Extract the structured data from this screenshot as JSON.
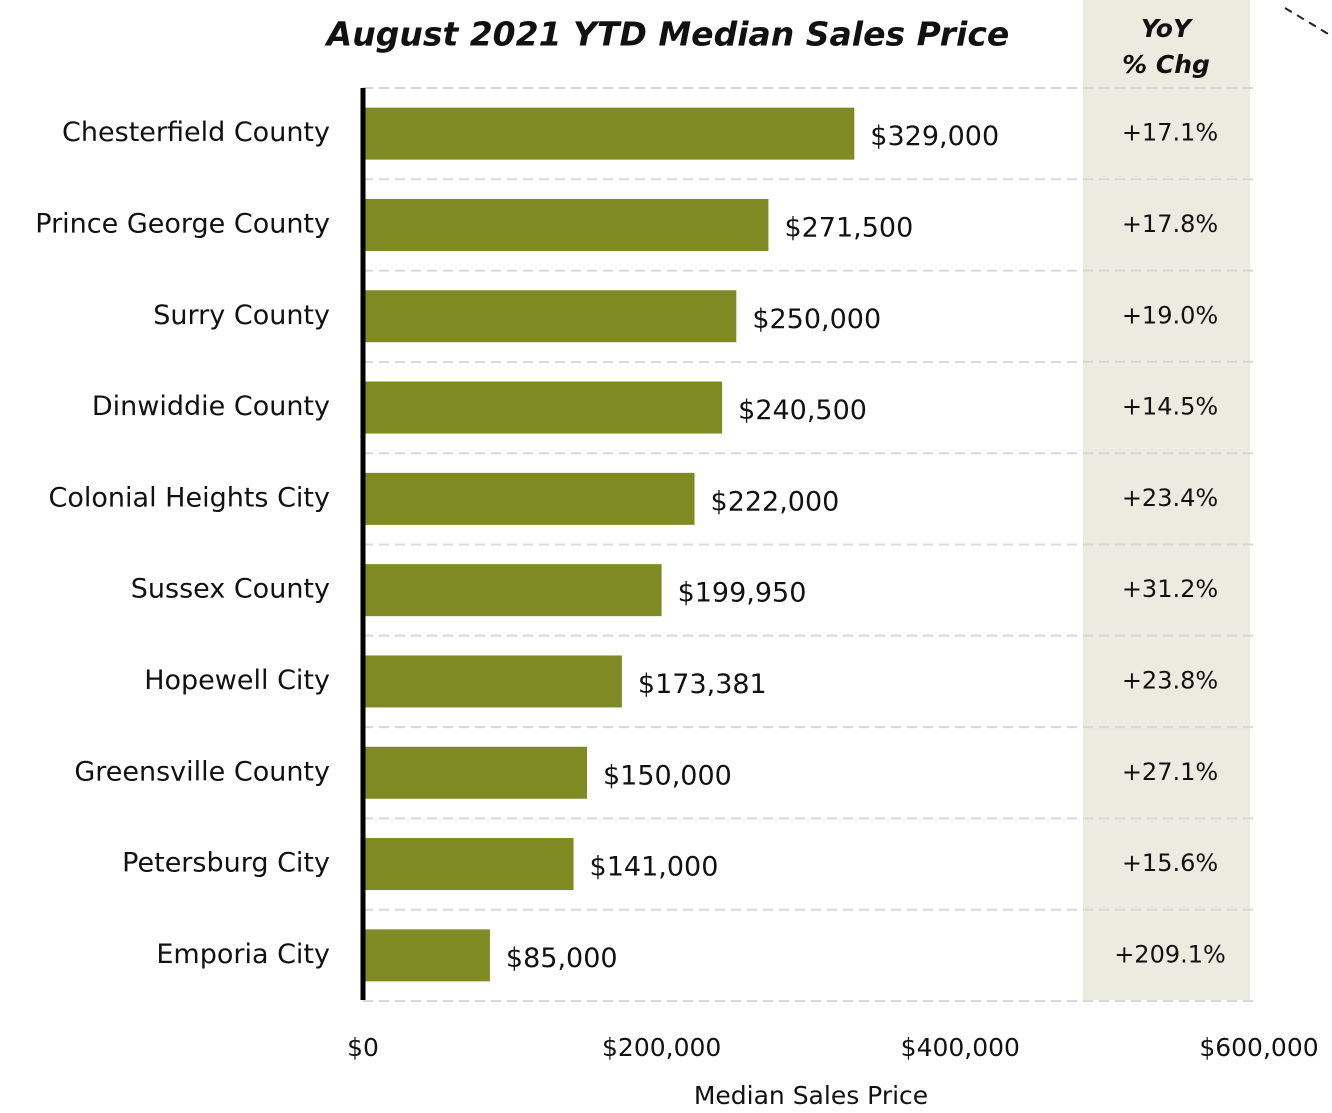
{
  "chart_data": {
    "type": "bar",
    "orientation": "horizontal",
    "title": "August 2021 YTD Median Sales Price",
    "x_label": "Median Sales Price",
    "categories": [
      "Chesterfield County",
      "Prince George County",
      "Surry County",
      "Dinwiddie County",
      "Colonial Heights City",
      "Sussex County",
      "Hopewell City",
      "Greensville County",
      "Petersburg City",
      "Emporia City"
    ],
    "values": [
      329000,
      271500,
      250000,
      240500,
      222000,
      199950,
      173381,
      150000,
      141000,
      85000
    ],
    "value_labels": [
      "$329,000",
      "$271,500",
      "$250,000",
      "$240,500",
      "$222,000",
      "$199,950",
      "$173,381",
      "$150,000",
      "$141,000",
      "$85,000"
    ],
    "color": "#7f8a22",
    "xlim": [
      0,
      600000
    ],
    "xticks": [
      {
        "value": 0,
        "label": "$0"
      },
      {
        "value": 200000,
        "label": "$200,000"
      },
      {
        "value": 400000,
        "label": "$400,000"
      },
      {
        "value": 600000,
        "label": "$600,000"
      }
    ],
    "yoy_header": [
      "YoY",
      "% Chg"
    ],
    "yoy_labels": [
      "+17.1%",
      "+17.8%",
      "+19.0%",
      "+14.5%",
      "+23.4%",
      "+31.2%",
      "+23.8%",
      "+27.1%",
      "+15.6%",
      "+209.1%"
    ]
  }
}
